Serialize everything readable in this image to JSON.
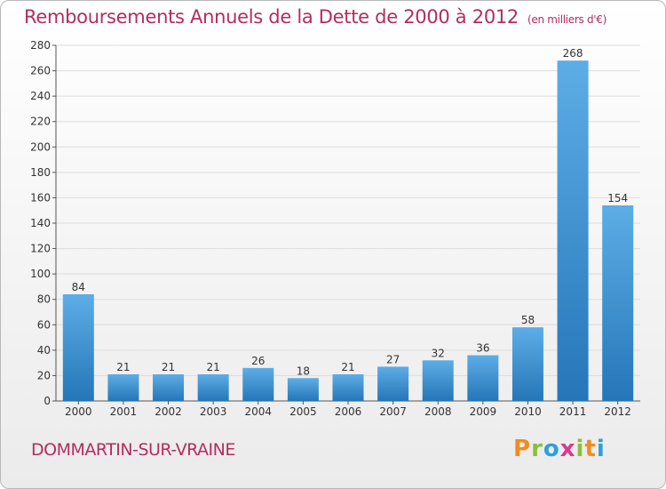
{
  "header": {
    "title": "Remboursements Annuels de la Dette de 2000 à 2012",
    "unit": "(en milliers d'€)"
  },
  "footer": {
    "commune": "DOMMARTIN-SUR-VRAINE",
    "logo_letters": [
      "P",
      "r",
      "o",
      "x",
      "i",
      "t",
      "i"
    ],
    "logo_colors": [
      "#f28c1e",
      "#8bbf3f",
      "#2f9fd8",
      "#d93a8a",
      "#8bbf3f",
      "#f28c1e",
      "#2f9fd8"
    ]
  },
  "colors": {
    "title": "#b32d5e",
    "bar_light": "#5dade6",
    "bar_dark": "#2576b8",
    "grid": "#dcdcdc"
  },
  "chart_data": {
    "type": "bar",
    "title": "Remboursements Annuels de la Dette de 2000 à 2012",
    "subtitle": "(en milliers d'€)",
    "xlabel": "",
    "ylabel": "",
    "categories": [
      "2000",
      "2001",
      "2002",
      "2003",
      "2004",
      "2005",
      "2006",
      "2007",
      "2008",
      "2009",
      "2010",
      "2011",
      "2012"
    ],
    "values": [
      84,
      21,
      21,
      21,
      26,
      18,
      21,
      27,
      32,
      36,
      58,
      268,
      154
    ],
    "ylim": [
      0,
      280
    ],
    "ytick_step": 20,
    "grid": true,
    "data_labels": true,
    "legend": "none"
  }
}
